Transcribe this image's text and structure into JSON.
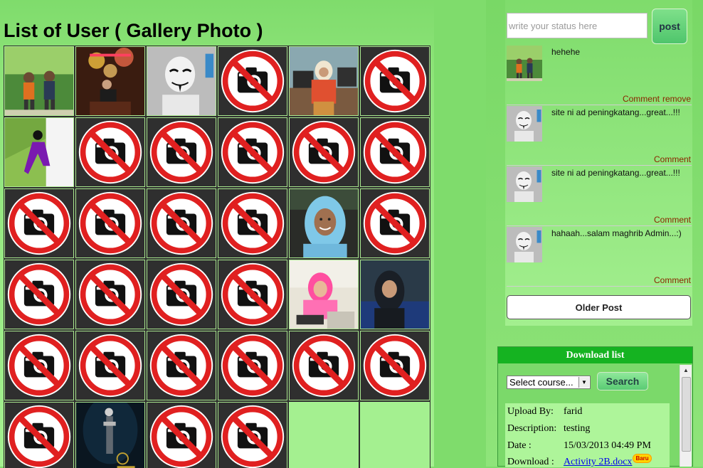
{
  "page": {
    "title": "List of User ( Gallery Photo )"
  },
  "gallery": {
    "columns": 6,
    "tiles": [
      {
        "kind": "photo",
        "scene": "two-people-garden"
      },
      {
        "kind": "photo",
        "scene": "person-lights-night"
      },
      {
        "kind": "photo",
        "scene": "mask-face"
      },
      {
        "kind": "no-photo"
      },
      {
        "kind": "photo",
        "scene": "woman-office"
      },
      {
        "kind": "no-photo"
      },
      {
        "kind": "photo",
        "scene": "woman-purple-field"
      },
      {
        "kind": "no-photo"
      },
      {
        "kind": "no-photo"
      },
      {
        "kind": "no-photo"
      },
      {
        "kind": "no-photo"
      },
      {
        "kind": "no-photo"
      },
      {
        "kind": "no-photo"
      },
      {
        "kind": "no-photo"
      },
      {
        "kind": "no-photo"
      },
      {
        "kind": "no-photo"
      },
      {
        "kind": "photo",
        "scene": "woman-blue-hijab"
      },
      {
        "kind": "no-photo"
      },
      {
        "kind": "no-photo"
      },
      {
        "kind": "no-photo"
      },
      {
        "kind": "no-photo"
      },
      {
        "kind": "no-photo"
      },
      {
        "kind": "photo",
        "scene": "woman-pink-hijab"
      },
      {
        "kind": "photo",
        "scene": "woman-dark-hijab"
      },
      {
        "kind": "no-photo"
      },
      {
        "kind": "no-photo"
      },
      {
        "kind": "no-photo"
      },
      {
        "kind": "no-photo"
      },
      {
        "kind": "no-photo"
      },
      {
        "kind": "no-photo"
      },
      {
        "kind": "no-photo"
      },
      {
        "kind": "photo",
        "scene": "figure-dark-stage"
      },
      {
        "kind": "no-photo"
      },
      {
        "kind": "no-photo"
      }
    ]
  },
  "status": {
    "placeholder": "write your status here",
    "post_label": "post"
  },
  "posts": [
    {
      "avatar": "two-people-garden",
      "text": "hehehe",
      "links": [
        "Comment",
        "remove"
      ]
    },
    {
      "avatar": "mask-face",
      "text": "site ni ad peningkatang...great...!!!",
      "links": [
        "Comment"
      ]
    },
    {
      "avatar": "mask-face",
      "text": "site ni ad peningkatang...great...!!!",
      "links": [
        "Comment"
      ]
    },
    {
      "avatar": "mask-face",
      "text": "hahaah...salam maghrib Admin...:)",
      "links": [
        "Comment"
      ]
    }
  ],
  "older_post_label": "Older Post",
  "download": {
    "header": "Download list",
    "select_value": "Select course...",
    "search_label": "Search",
    "info": {
      "upload_by_label": "Upload By:",
      "upload_by": "farid",
      "description_label": "Description:",
      "description": "testing",
      "date_label": "Date :",
      "date": "15/03/2013 04:49 PM",
      "download_label": "Download :",
      "download_file": "Activity 2B.docx",
      "badge": "Baru"
    }
  },
  "colors": {
    "page_bg": "#7fdc6c",
    "header_green": "#15b321",
    "comment_link": "#8b2500",
    "no_photo_red": "#e02020"
  }
}
